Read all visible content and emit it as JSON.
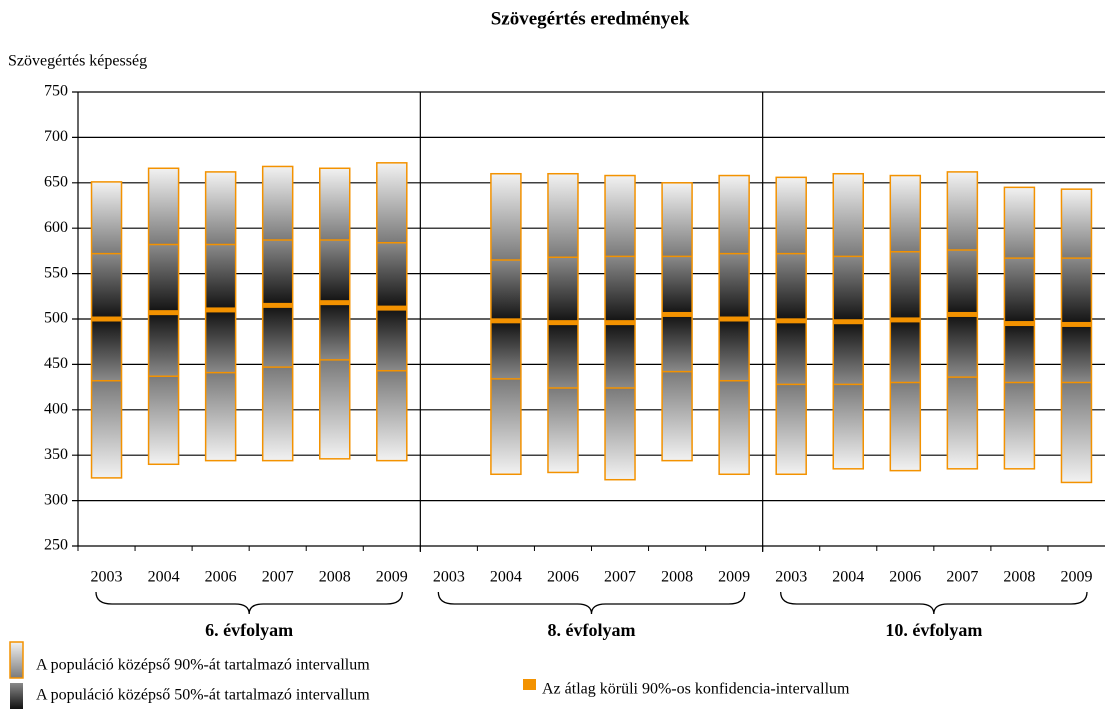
{
  "chart_data": {
    "type": "box",
    "title": "Szövegértés eredmények",
    "y_label": "Szövegértés képesség",
    "ylim": [
      250,
      750
    ],
    "yticks": [
      250,
      300,
      350,
      400,
      450,
      500,
      550,
      600,
      650,
      700,
      750
    ],
    "grid": true,
    "stroke_color": "#f39200",
    "groups": [
      {
        "label": "6. évfolyam",
        "categories": [
          "2003",
          "2004",
          "2006",
          "2007",
          "2008",
          "2009"
        ],
        "p5": [
          325,
          340,
          344,
          344,
          346,
          344
        ],
        "p25": [
          432,
          437,
          441,
          447,
          455,
          443
        ],
        "mean": [
          500,
          507,
          510,
          515,
          518,
          512
        ],
        "p75": [
          572,
          582,
          582,
          587,
          587,
          584
        ],
        "p95": [
          651,
          666,
          662,
          668,
          666,
          672
        ]
      },
      {
        "label": "8. évfolyam",
        "categories": [
          "2003",
          "2004",
          "2006",
          "2007",
          "2008",
          "2009"
        ],
        "p5": [
          null,
          329,
          331,
          323,
          344,
          329
        ],
        "p25": [
          null,
          434,
          424,
          424,
          442,
          432
        ],
        "mean": [
          null,
          498,
          496,
          496,
          505,
          500
        ],
        "p75": [
          null,
          565,
          568,
          569,
          569,
          572
        ],
        "p95": [
          null,
          660,
          660,
          658,
          650,
          658
        ]
      },
      {
        "label": "10. évfolyam",
        "categories": [
          "2003",
          "2004",
          "2006",
          "2007",
          "2008",
          "2009"
        ],
        "p5": [
          329,
          335,
          333,
          335,
          335,
          320
        ],
        "p25": [
          428,
          428,
          430,
          436,
          430,
          430
        ],
        "mean": [
          498,
          497,
          499,
          505,
          495,
          494
        ],
        "p75": [
          572,
          569,
          574,
          576,
          567,
          567
        ],
        "p95": [
          656,
          660,
          658,
          662,
          645,
          643
        ]
      }
    ],
    "legend": {
      "range90": "A populáció középső 90%-át tartalmazó intervallum",
      "range50": "A populáció középső 50%-át tartalmazó intervallum",
      "ci": "Az átlag körüli 90%-os konfidencia-intervallum"
    }
  }
}
